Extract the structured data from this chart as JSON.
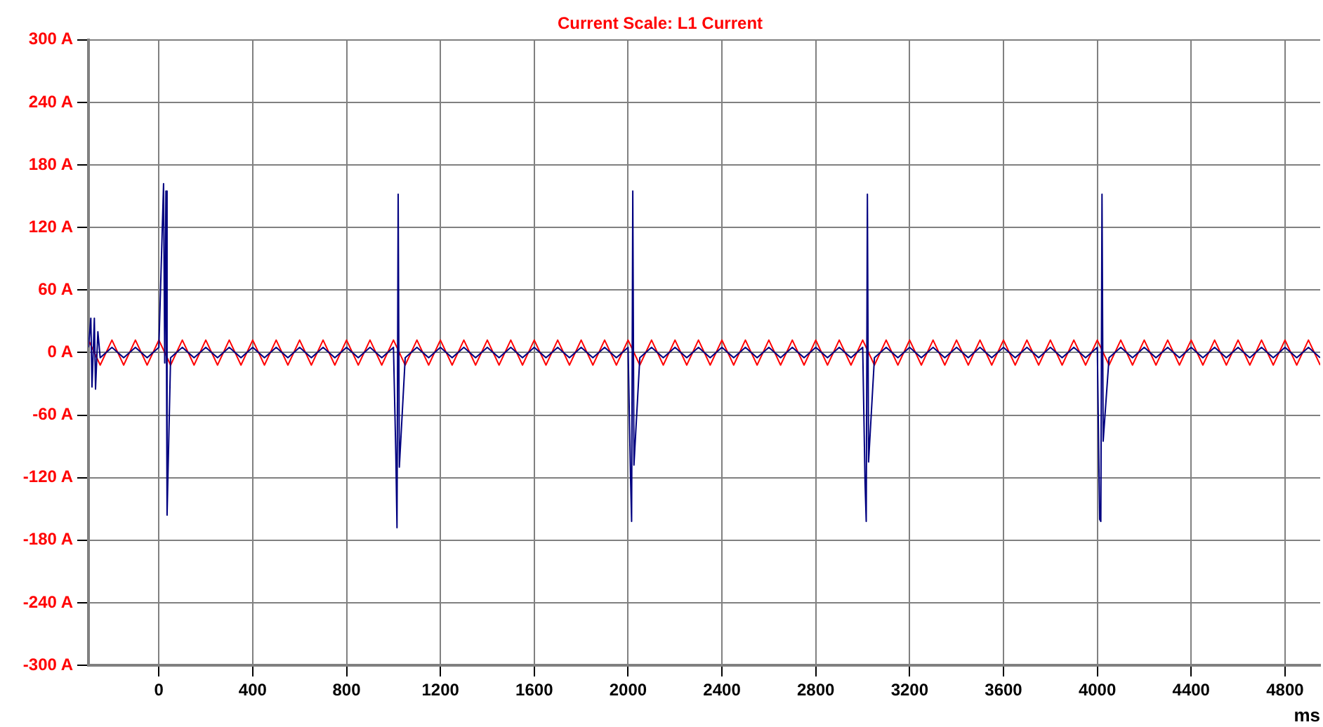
{
  "chart_data": {
    "type": "line",
    "title": "Current Scale: L1 Current",
    "xlabel": "ms",
    "xlim": [
      -300,
      4950
    ],
    "xticks": [
      0,
      400,
      800,
      1200,
      1600,
      2000,
      2400,
      2800,
      3200,
      3600,
      4000,
      4400,
      4800
    ],
    "ylim": [
      -300,
      300
    ],
    "yticks": [
      {
        "value": -300,
        "label": "-300 A"
      },
      {
        "value": -240,
        "label": "-240 A"
      },
      {
        "value": -180,
        "label": "-180 A"
      },
      {
        "value": -120,
        "label": "-120 A"
      },
      {
        "value": -60,
        "label": "-60 A"
      },
      {
        "value": 0,
        "label": "0 A"
      },
      {
        "value": 60,
        "label": "60 A"
      },
      {
        "value": 120,
        "label": "120 A"
      },
      {
        "value": 180,
        "label": "180 A"
      },
      {
        "value": 240,
        "label": "240 A"
      },
      {
        "value": 300,
        "label": "300 A"
      }
    ],
    "grid": true,
    "legend": false,
    "marker": "none",
    "line_style": "solid",
    "series": [
      {
        "color": "#ff0000",
        "x": [
          -300,
          -250,
          -200,
          -150,
          -100,
          -50,
          0,
          50,
          100,
          150,
          200,
          250,
          300,
          350,
          400,
          450,
          500,
          550,
          600,
          650,
          700,
          750,
          800,
          850,
          900,
          950,
          1000,
          1050,
          1100,
          1150,
          1200,
          1250,
          1300,
          1350,
          1400,
          1450,
          1500,
          1550,
          1600,
          1650,
          1700,
          1750,
          1800,
          1850,
          1900,
          1950,
          2000,
          2050,
          2100,
          2150,
          2200,
          2250,
          2300,
          2350,
          2400,
          2450,
          2500,
          2550,
          2600,
          2650,
          2700,
          2750,
          2800,
          2850,
          2900,
          2950,
          3000,
          3050,
          3100,
          3150,
          3200,
          3250,
          3300,
          3350,
          3400,
          3450,
          3500,
          3550,
          3600,
          3650,
          3700,
          3750,
          3800,
          3850,
          3900,
          3950,
          4000,
          4050,
          4100,
          4150,
          4200,
          4250,
          4300,
          4350,
          4400,
          4450,
          4500,
          4550,
          4600,
          4650,
          4700,
          4750,
          4800,
          4850,
          4900,
          4950
        ],
        "values": [
          12,
          -12,
          12,
          -12,
          12,
          -12,
          12,
          -12,
          12,
          -12,
          12,
          -12,
          12,
          -12,
          12,
          -12,
          12,
          -12,
          12,
          -12,
          12,
          -12,
          12,
          -12,
          12,
          -12,
          12,
          -12,
          12,
          -12,
          12,
          -12,
          12,
          -12,
          12,
          -12,
          12,
          -12,
          12,
          -12,
          12,
          -12,
          12,
          -12,
          12,
          -12,
          12,
          -12,
          12,
          -12,
          12,
          -12,
          12,
          -12,
          12,
          -12,
          12,
          -12,
          12,
          -12,
          12,
          -12,
          12,
          -12,
          12,
          -12,
          12,
          -12,
          12,
          -12,
          12,
          -12,
          12,
          -12,
          12,
          -12,
          12,
          -12,
          12,
          -12,
          12,
          -12,
          12,
          -12,
          12,
          -12,
          12,
          -12,
          12,
          -12,
          12,
          -12,
          12,
          -12,
          12,
          -12,
          12,
          -12,
          12,
          -12,
          12,
          -12,
          12,
          -12,
          12,
          -12
        ]
      },
      {
        "color": "#000080",
        "x": [
          -300,
          -290,
          -285,
          -275,
          -270,
          -260,
          -250,
          -200,
          -150,
          -100,
          -50,
          0,
          20,
          25,
          30,
          35,
          50,
          100,
          150,
          200,
          250,
          300,
          350,
          400,
          450,
          500,
          550,
          600,
          650,
          700,
          750,
          800,
          850,
          900,
          950,
          1000,
          1010,
          1015,
          1020,
          1025,
          1050,
          1100,
          1150,
          1200,
          1250,
          1300,
          1350,
          1400,
          1450,
          1500,
          1550,
          1600,
          1650,
          1700,
          1750,
          1800,
          1850,
          1900,
          1950,
          2000,
          2010,
          2015,
          2020,
          2025,
          2050,
          2100,
          2150,
          2200,
          2250,
          2300,
          2350,
          2400,
          2450,
          2500,
          2550,
          2600,
          2650,
          2700,
          2750,
          2800,
          2850,
          2900,
          2950,
          3000,
          3010,
          3015,
          3020,
          3025,
          3050,
          3100,
          3150,
          3200,
          3250,
          3300,
          3350,
          3400,
          3450,
          3500,
          3550,
          3600,
          3650,
          3700,
          3750,
          3800,
          3850,
          3900,
          3950,
          4000,
          4010,
          4015,
          4020,
          4025,
          4050,
          4100,
          4150,
          4200,
          4250,
          4300,
          4350,
          4400,
          4450,
          4500,
          4550,
          4600,
          4650,
          4700,
          4750,
          4800,
          4850,
          4900,
          4950
        ],
        "values": [
          5,
          33,
          -33,
          33,
          -35,
          20,
          -5,
          5,
          -5,
          5,
          -5,
          5,
          162,
          -10,
          155,
          -156,
          -5,
          5,
          -5,
          5,
          -5,
          5,
          -5,
          5,
          -5,
          5,
          -5,
          5,
          -5,
          5,
          -5,
          5,
          -5,
          5,
          -5,
          5,
          -98,
          -168,
          152,
          -110,
          -5,
          5,
          -5,
          5,
          -5,
          5,
          -5,
          5,
          -5,
          5,
          -5,
          5,
          -5,
          5,
          -5,
          5,
          -5,
          5,
          -5,
          5,
          -115,
          -162,
          155,
          -108,
          -5,
          5,
          -5,
          5,
          -5,
          5,
          -5,
          5,
          -5,
          5,
          -5,
          5,
          -5,
          5,
          -5,
          5,
          -5,
          5,
          -5,
          5,
          -125,
          -162,
          152,
          -105,
          -5,
          5,
          -5,
          5,
          -5,
          5,
          -5,
          5,
          -5,
          5,
          -5,
          5,
          -5,
          5,
          -5,
          5,
          -5,
          5,
          -5,
          5,
          -160,
          -162,
          152,
          -85,
          -5,
          5,
          -5,
          5,
          -5,
          5,
          -5,
          5,
          -5,
          5,
          -5,
          5,
          -5,
          5,
          -5,
          5,
          -5,
          5,
          -5
        ]
      }
    ]
  }
}
